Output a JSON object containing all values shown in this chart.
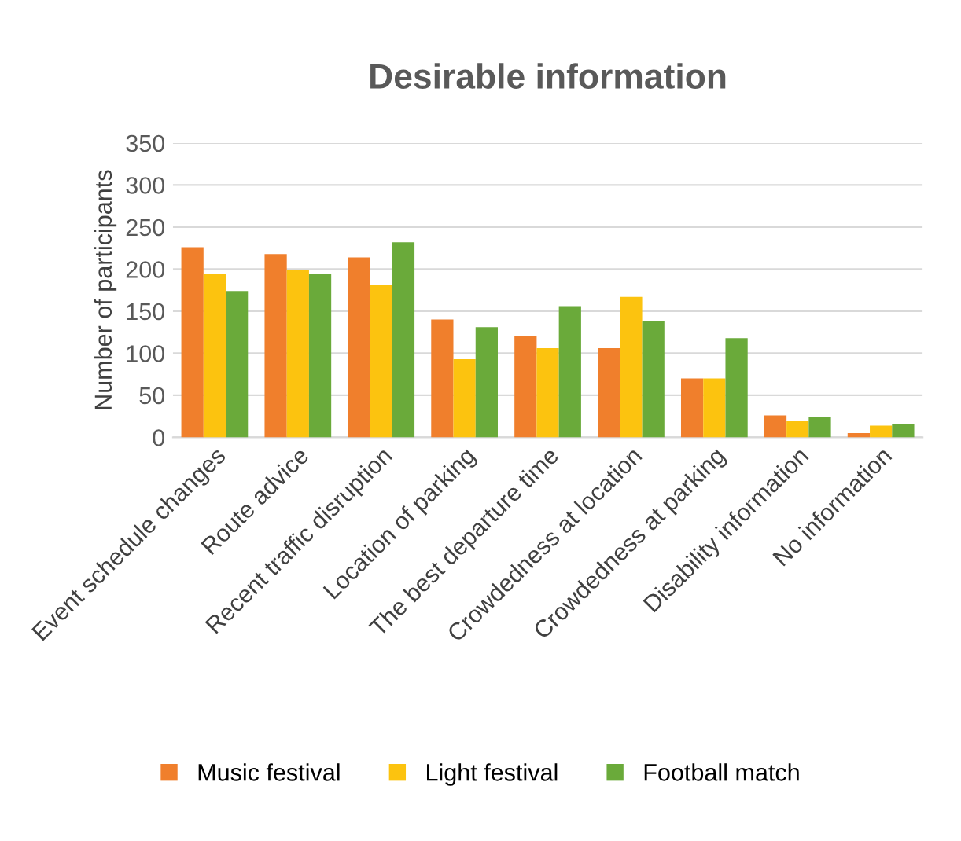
{
  "chart_data": {
    "type": "bar",
    "title": "Desirable information",
    "ylabel": "Number of participants",
    "categories": [
      "Event schedule changes",
      "Route advice",
      "Recent traffic disruption",
      "Location of parking",
      "The best departure time",
      "Crowdedness at location",
      "Crowdedness at parking",
      "Disability information",
      "No information"
    ],
    "series": [
      {
        "name": "Music festival",
        "color": "#f07f2c",
        "values": [
          226,
          218,
          214,
          140,
          121,
          106,
          70,
          26,
          5
        ]
      },
      {
        "name": "Light festival",
        "color": "#fcc30f",
        "values": [
          194,
          199,
          181,
          93,
          106,
          167,
          70,
          19,
          14
        ]
      },
      {
        "name": "Football match",
        "color": "#6aaa3a",
        "values": [
          174,
          194,
          232,
          131,
          156,
          138,
          118,
          24,
          16
        ]
      }
    ],
    "ylim": [
      0,
      350
    ],
    "yticks": [
      0,
      50,
      100,
      150,
      200,
      250,
      300,
      350
    ],
    "grid": "y",
    "legend": "bottom"
  }
}
